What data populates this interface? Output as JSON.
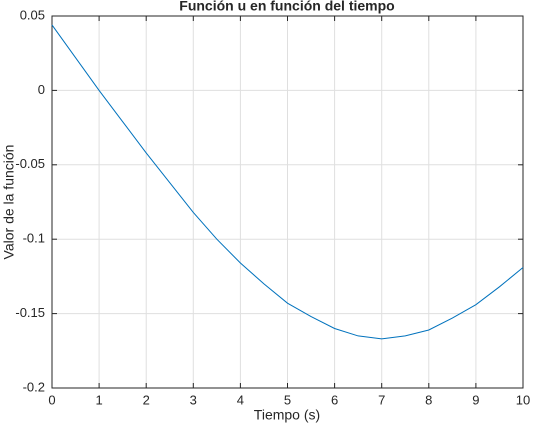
{
  "chart_data": {
    "type": "line",
    "title": "Función u en función del tiempo",
    "x_label": "Tiempo (s)",
    "y_label": "Valor de la función",
    "x": [
      0,
      0.5,
      1,
      1.5,
      2,
      2.5,
      3,
      3.5,
      4,
      4.5,
      5,
      5.5,
      6,
      6.5,
      7,
      7.5,
      8,
      8.5,
      9,
      9.5,
      10
    ],
    "series": [
      {
        "color": "#0072bd",
        "values": [
          0.044,
          0.022,
          0.0,
          -0.021,
          -0.042,
          -0.062,
          -0.082,
          -0.1,
          -0.116,
          -0.13,
          -0.143,
          -0.152,
          -0.16,
          -0.165,
          -0.167,
          -0.165,
          -0.161,
          -0.153,
          -0.144,
          -0.132,
          -0.119
        ]
      }
    ],
    "xlim": [
      0,
      10
    ],
    "xticks": [
      0,
      1,
      2,
      3,
      4,
      5,
      6,
      7,
      8,
      9,
      10
    ],
    "ylim": [
      -0.2,
      0.05
    ],
    "yticks": [
      -0.2,
      -0.15,
      -0.1,
      -0.05,
      0,
      0.05
    ],
    "grid": true
  }
}
